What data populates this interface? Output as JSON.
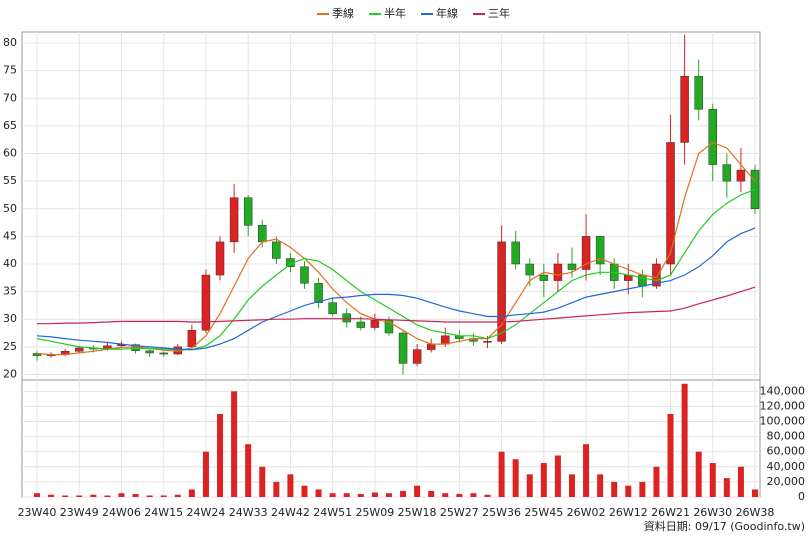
{
  "chart_data": {
    "type": "candlestick",
    "categories": [
      "23W40",
      null,
      null,
      "23W49",
      null,
      null,
      "24W06",
      null,
      null,
      "24W15",
      null,
      null,
      "24W24",
      null,
      null,
      "24W33",
      null,
      null,
      "24W42",
      null,
      null,
      "24W51",
      null,
      null,
      "25W09",
      null,
      null,
      "25W18",
      null,
      null,
      "25W27",
      null,
      null,
      "25W36",
      null,
      null,
      "25W45",
      null,
      null,
      "26W02",
      null,
      null,
      "26W12",
      null,
      null,
      "26W21",
      null,
      null,
      "26W30",
      null,
      null,
      "26W38"
    ],
    "open": [
      23.8,
      23.4,
      23.6,
      24.2,
      24.8,
      24.6,
      25.2,
      25.4,
      24.3,
      23.9,
      23.7,
      25.0,
      28,
      38,
      44,
      52,
      47,
      44,
      41,
      39.5,
      36.5,
      33,
      31,
      29.5,
      28.5,
      29.8,
      27.5,
      22,
      24.5,
      25.5,
      27,
      26.5,
      26,
      26,
      44,
      40,
      38,
      37,
      40,
      39,
      45,
      40,
      37,
      38,
      36,
      40,
      62,
      74,
      68,
      58,
      55,
      57
    ],
    "high": [
      24.2,
      24,
      24.6,
      25.2,
      25.3,
      25.7,
      26,
      25.6,
      24.5,
      24.2,
      25.5,
      29,
      39,
      45,
      54.5,
      52.5,
      48,
      45,
      42,
      40.5,
      37.5,
      34,
      32,
      30.5,
      31,
      30.5,
      28,
      25.5,
      26.5,
      28.5,
      28,
      27.5,
      27,
      47,
      46,
      41,
      40,
      42,
      43,
      49,
      45,
      41,
      40,
      39,
      41,
      67,
      81.5,
      77,
      69,
      60,
      61,
      58
    ],
    "low": [
      22.5,
      23,
      23.3,
      23.8,
      24,
      24.3,
      24.8,
      23.8,
      23.2,
      23.2,
      23.5,
      24.8,
      27.5,
      37,
      42,
      45,
      43,
      40,
      38.5,
      35.5,
      32,
      30.5,
      28.5,
      28,
      28,
      27,
      20,
      21.5,
      24,
      25,
      25.8,
      25.2,
      24.8,
      25.5,
      39,
      36,
      34,
      35,
      37.5,
      37,
      38,
      35.5,
      34.5,
      34,
      35.5,
      38,
      58,
      66,
      55,
      52,
      53,
      49
    ],
    "close": [
      23.4,
      23.6,
      24.2,
      24.8,
      24.6,
      25.2,
      25.4,
      24.3,
      23.9,
      23.7,
      25.0,
      28,
      38,
      44,
      52,
      47,
      44,
      41,
      39.5,
      36.5,
      33,
      31,
      29.5,
      28.5,
      29.8,
      27.5,
      22,
      24.5,
      25.5,
      27,
      26.5,
      26,
      26,
      44,
      40,
      38,
      37,
      40,
      39,
      45,
      40,
      37,
      38,
      36,
      40,
      62,
      74,
      68,
      58,
      55,
      57,
      50
    ],
    "up_color": "#dd2222",
    "down_color": "#22aa22",
    "series": [
      {
        "name": "季線",
        "color": "#e07020",
        "values": [
          23.8,
          23.6,
          23.6,
          23.9,
          24.2,
          24.6,
          24.9,
          25,
          24.7,
          24.4,
          24.2,
          24.8,
          27,
          31,
          36,
          41,
          44,
          44.5,
          43,
          41,
          38.5,
          35.5,
          33,
          31,
          30,
          29.5,
          28,
          26.5,
          25.5,
          25.5,
          26,
          26.5,
          26.5,
          29,
          33,
          37,
          38.5,
          38,
          38.5,
          40,
          41,
          40,
          39,
          38,
          37.5,
          42,
          52,
          60,
          62,
          61,
          58,
          55
        ]
      },
      {
        "name": "半年",
        "color": "#22cc22",
        "values": [
          26.5,
          26,
          25.5,
          25,
          24.8,
          24.6,
          24.6,
          24.7,
          24.7,
          24.6,
          24.5,
          24.5,
          25.2,
          27,
          30,
          33.5,
          36,
          38,
          40,
          41,
          40.5,
          39,
          37,
          35,
          33.5,
          32,
          30.5,
          29,
          28,
          27.5,
          27,
          27,
          26.5,
          27.5,
          29,
          31,
          33,
          35,
          37,
          38,
          38.5,
          38.5,
          38,
          37.5,
          37,
          38,
          42,
          46,
          49,
          51,
          52.5,
          53.5
        ]
      },
      {
        "name": "年線",
        "color": "#2266dd",
        "values": [
          27,
          26.8,
          26.5,
          26.2,
          26,
          25.8,
          25.5,
          25.2,
          25,
          24.8,
          24.6,
          24.5,
          24.8,
          25.5,
          26.5,
          28,
          29.5,
          30.5,
          31.5,
          32.5,
          33.2,
          33.8,
          34,
          34.3,
          34.5,
          34.5,
          34.3,
          33.8,
          33,
          32.2,
          31.5,
          31,
          30.5,
          30.5,
          30.8,
          31,
          31.3,
          32,
          33,
          34,
          34.5,
          35,
          35.5,
          36,
          36.5,
          37,
          38,
          39.5,
          41.5,
          44,
          45.5,
          46.5
        ]
      },
      {
        "name": "三年",
        "color": "#cc2255",
        "values": [
          29.2,
          29.2,
          29.3,
          29.3,
          29.4,
          29.5,
          29.6,
          29.6,
          29.6,
          29.6,
          29.6,
          29.5,
          29.5,
          29.6,
          29.7,
          29.8,
          29.9,
          30,
          30,
          30.1,
          30.1,
          30.1,
          30.1,
          30.1,
          30,
          29.9,
          29.8,
          29.7,
          29.6,
          29.5,
          29.5,
          29.5,
          29.5,
          29.5,
          29.6,
          29.8,
          30,
          30.2,
          30.4,
          30.6,
          30.8,
          31,
          31.2,
          31.3,
          31.4,
          31.5,
          32,
          32.8,
          33.5,
          34.2,
          35,
          35.8
        ]
      }
    ],
    "ylim": [
      19,
      82
    ],
    "yticks": [
      20,
      25,
      30,
      35,
      40,
      45,
      50,
      55,
      60,
      65,
      70,
      75,
      80
    ],
    "volume": {
      "color": "#dd2222",
      "values": [
        5000,
        3000,
        2000,
        2000,
        3000,
        2000,
        5000,
        4000,
        2000,
        2000,
        3000,
        10000,
        60000,
        110000,
        140000,
        70000,
        40000,
        20000,
        30000,
        15000,
        10000,
        5000,
        5000,
        4000,
        6000,
        5000,
        8000,
        15000,
        8000,
        5000,
        4000,
        5000,
        3000,
        60000,
        50000,
        30000,
        45000,
        55000,
        30000,
        70000,
        30000,
        20000,
        15000,
        20000,
        40000,
        110000,
        150000,
        60000,
        45000,
        25000,
        40000,
        10000
      ],
      "ylim": [
        0,
        155000
      ],
      "yticks": [
        0,
        {
          "value": 20000,
          "label": "20,000"
        },
        {
          "value": 40000,
          "label": "40,000"
        },
        {
          "value": 60000,
          "label": "60,000"
        },
        {
          "value": 80000,
          "label": "80,000"
        },
        {
          "value": 100000,
          "label": "100,000"
        },
        {
          "value": 120000,
          "label": "120,000"
        },
        {
          "value": 140000,
          "label": "140,000"
        }
      ]
    },
    "grid": true,
    "legend": "top",
    "source": "資料日期: 09/17 (Goodinfo.tw)"
  }
}
